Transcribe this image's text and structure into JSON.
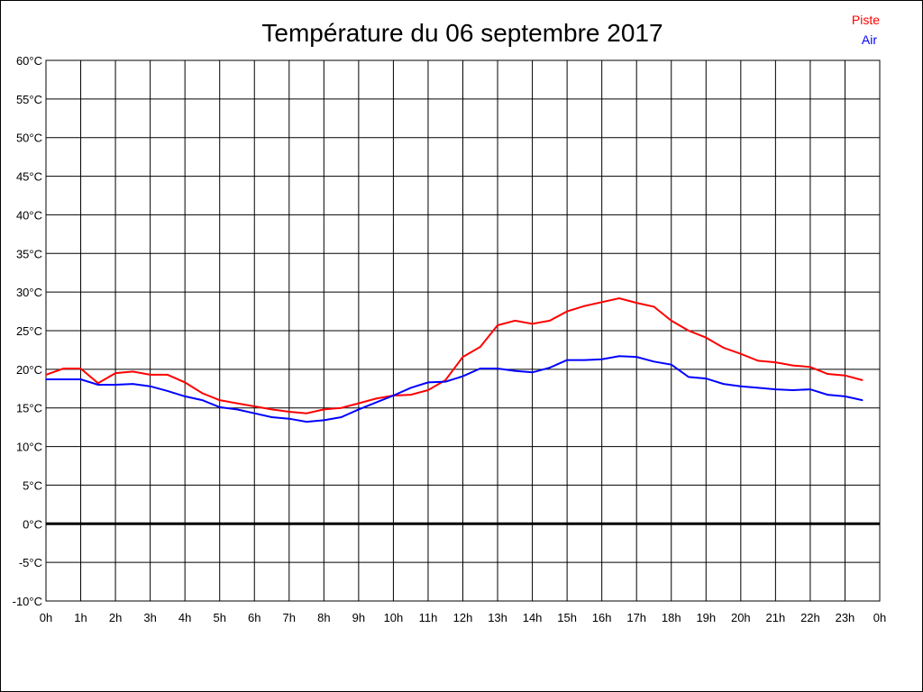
{
  "chart_data": {
    "type": "line",
    "title": "Température du 06 septembre 2017",
    "xlabel": "",
    "ylabel": "",
    "x_tick_labels": [
      "0h",
      "1h",
      "2h",
      "3h",
      "4h",
      "5h",
      "6h",
      "7h",
      "8h",
      "9h",
      "10h",
      "11h",
      "12h",
      "13h",
      "14h",
      "15h",
      "16h",
      "17h",
      "18h",
      "19h",
      "20h",
      "21h",
      "22h",
      "23h",
      "0h"
    ],
    "y_tick_labels": [
      "60°C",
      "55°C",
      "50°C",
      "45°C",
      "40°C",
      "35°C",
      "30°C",
      "25°C",
      "20°C",
      "15°C",
      "10°C",
      "5°C",
      "0°C",
      "-5°C",
      "-10°C"
    ],
    "xlim": [
      0,
      24
    ],
    "ylim": [
      -10,
      60
    ],
    "grid": true,
    "legend_placement": "top-right",
    "x": [
      0,
      0.5,
      1,
      1.5,
      2,
      2.5,
      3,
      3.5,
      4,
      4.5,
      5,
      5.5,
      6,
      6.5,
      7,
      7.5,
      8,
      8.5,
      9,
      9.5,
      10,
      10.5,
      11,
      11.5,
      12,
      12.5,
      13,
      13.5,
      14,
      14.5,
      15,
      15.5,
      16,
      16.5,
      17,
      17.5,
      18,
      18.5,
      19,
      19.5,
      20,
      20.5,
      21,
      21.5,
      22,
      22.5,
      23,
      23.5
    ],
    "series": [
      {
        "name": "Piste",
        "color": "#ff0000",
        "values": [
          19.3,
          20.1,
          20.1,
          18.2,
          19.5,
          19.7,
          19.3,
          19.3,
          18.3,
          16.9,
          16.0,
          15.6,
          15.2,
          14.8,
          14.5,
          14.3,
          14.8,
          15.0,
          15.6,
          16.2,
          16.6,
          16.7,
          17.3,
          18.6,
          21.6,
          22.9,
          25.7,
          26.3,
          25.9,
          26.3,
          27.5,
          28.2,
          28.7,
          29.2,
          28.6,
          28.1,
          26.3,
          25.0,
          24.1,
          22.8,
          22.0,
          21.1,
          20.9,
          20.5,
          20.3,
          19.4,
          19.2,
          18.6
        ]
      },
      {
        "name": "Air",
        "color": "#0000ff",
        "values": [
          18.7,
          18.7,
          18.7,
          18.0,
          18.0,
          18.1,
          17.8,
          17.2,
          16.5,
          16.0,
          15.1,
          14.8,
          14.3,
          13.8,
          13.6,
          13.2,
          13.4,
          13.8,
          14.8,
          15.7,
          16.6,
          17.6,
          18.3,
          18.4,
          19.1,
          20.1,
          20.1,
          19.8,
          19.6,
          20.2,
          21.2,
          21.2,
          21.3,
          21.7,
          21.6,
          21.0,
          20.6,
          19.0,
          18.8,
          18.1,
          17.8,
          17.6,
          17.4,
          17.3,
          17.4,
          16.7,
          16.5,
          16.0
        ]
      }
    ]
  }
}
